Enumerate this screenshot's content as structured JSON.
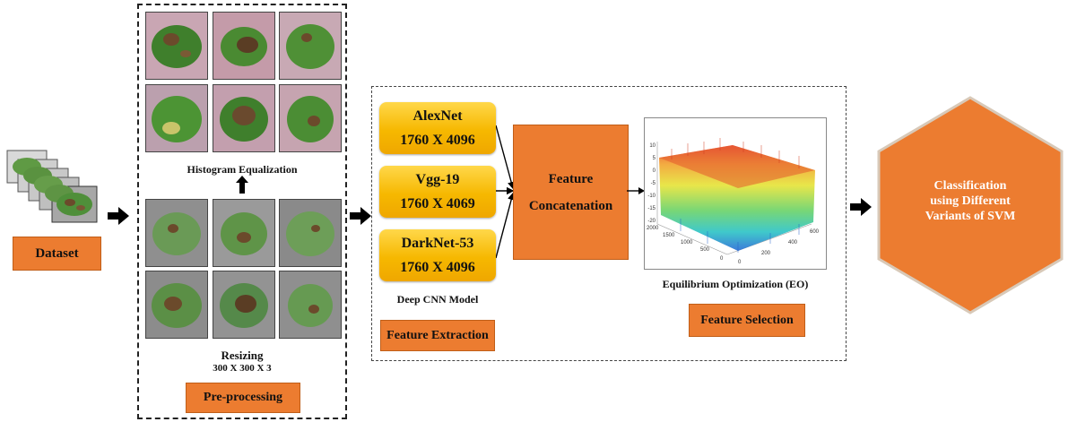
{
  "dataset": {
    "label": "Dataset"
  },
  "preprocessing": {
    "histogram_label": "Histogram Equalization",
    "resizing_label": "Resizing",
    "resize_dims": "300 X 300 X 3",
    "button_label": "Pre-processing"
  },
  "models": [
    {
      "name": "AlexNet",
      "dims": "1760 X 4096"
    },
    {
      "name": "Vgg-19",
      "dims": "1760 X 4069"
    },
    {
      "name": "DarkNet-53",
      "dims": "1760 X 4096"
    }
  ],
  "deep_cnn_label": "Deep CNN Model",
  "feature_extraction_label": "Feature Extraction",
  "concatenation": {
    "line1": "Feature",
    "line2": "Concatenation"
  },
  "eo_plot": {
    "z_ticks": [
      "10",
      "5",
      "0",
      "-5",
      "-10",
      "-15",
      "-20"
    ],
    "y_ticks": [
      "2000",
      "1500",
      "1000",
      "500",
      "0"
    ],
    "x_ticks": [
      "0",
      "200",
      "400",
      "600"
    ]
  },
  "eo_label": "Equilibrium Optimization (EO)",
  "feature_selection_label": "Feature Selection",
  "classification": {
    "line1": "Classification",
    "line2": "using Different",
    "line3": "Variants of SVM"
  },
  "colors": {
    "orange": "#ec7c30",
    "yellow": "#f6b800",
    "leaf_green": "#4f8f3a",
    "lesion_brown": "#6b4a2b"
  }
}
